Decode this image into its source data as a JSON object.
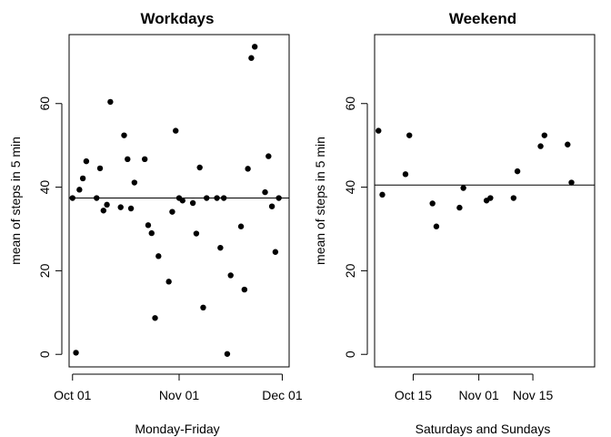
{
  "chart_data": [
    {
      "type": "scatter",
      "title": "Workdays",
      "xlabel": "Monday-Friday",
      "ylabel": "mean of steps in 5 min",
      "x_tick_labels": [
        "Oct 01",
        "Nov 01",
        "Dec 01"
      ],
      "x_tick_dates": [
        "2012-10-01",
        "2012-11-01",
        "2012-12-01"
      ],
      "y_ticks": [
        0,
        20,
        40,
        60
      ],
      "xlim": [
        "2012-09-30",
        "2012-12-03"
      ],
      "ylim": [
        -3,
        76.5
      ],
      "mean_line": 37.4,
      "colors": {
        "points": "#000000",
        "line": "#000000"
      },
      "points": [
        {
          "x": "2012-10-01",
          "y": 37.4
        },
        {
          "x": "2012-10-02",
          "y": 0.4
        },
        {
          "x": "2012-10-03",
          "y": 39.4
        },
        {
          "x": "2012-10-04",
          "y": 42.1
        },
        {
          "x": "2012-10-05",
          "y": 46.2
        },
        {
          "x": "2012-10-08",
          "y": 37.4
        },
        {
          "x": "2012-10-09",
          "y": 44.5
        },
        {
          "x": "2012-10-10",
          "y": 34.4
        },
        {
          "x": "2012-10-11",
          "y": 35.8
        },
        {
          "x": "2012-10-12",
          "y": 60.4
        },
        {
          "x": "2012-10-15",
          "y": 35.2
        },
        {
          "x": "2012-10-16",
          "y": 52.4
        },
        {
          "x": "2012-10-17",
          "y": 46.7
        },
        {
          "x": "2012-10-18",
          "y": 34.9
        },
        {
          "x": "2012-10-19",
          "y": 41.1
        },
        {
          "x": "2012-10-22",
          "y": 46.7
        },
        {
          "x": "2012-10-23",
          "y": 30.9
        },
        {
          "x": "2012-10-24",
          "y": 29.0
        },
        {
          "x": "2012-10-25",
          "y": 8.7
        },
        {
          "x": "2012-10-26",
          "y": 23.5
        },
        {
          "x": "2012-10-29",
          "y": 17.4
        },
        {
          "x": "2012-10-30",
          "y": 34.1
        },
        {
          "x": "2012-10-31",
          "y": 53.5
        },
        {
          "x": "2012-11-01",
          "y": 37.4
        },
        {
          "x": "2012-11-02",
          "y": 36.8
        },
        {
          "x": "2012-11-05",
          "y": 36.2
        },
        {
          "x": "2012-11-06",
          "y": 28.9
        },
        {
          "x": "2012-11-07",
          "y": 44.7
        },
        {
          "x": "2012-11-08",
          "y": 11.2
        },
        {
          "x": "2012-11-09",
          "y": 37.4
        },
        {
          "x": "2012-11-12",
          "y": 37.4
        },
        {
          "x": "2012-11-13",
          "y": 25.5
        },
        {
          "x": "2012-11-14",
          "y": 37.4
        },
        {
          "x": "2012-11-15",
          "y": 0.1
        },
        {
          "x": "2012-11-16",
          "y": 18.9
        },
        {
          "x": "2012-11-19",
          "y": 30.6
        },
        {
          "x": "2012-11-20",
          "y": 15.5
        },
        {
          "x": "2012-11-21",
          "y": 44.4
        },
        {
          "x": "2012-11-22",
          "y": 70.9
        },
        {
          "x": "2012-11-23",
          "y": 73.6
        },
        {
          "x": "2012-11-26",
          "y": 38.8
        },
        {
          "x": "2012-11-27",
          "y": 47.4
        },
        {
          "x": "2012-11-28",
          "y": 35.4
        },
        {
          "x": "2012-11-29",
          "y": 24.5
        },
        {
          "x": "2012-11-30",
          "y": 37.4
        }
      ]
    },
    {
      "type": "scatter",
      "title": "Weekend",
      "xlabel": "Saturdays and Sundays",
      "ylabel": "mean of steps in 5 min",
      "x_tick_labels": [
        "Oct 15",
        "Nov 01",
        "Nov 15"
      ],
      "x_tick_dates": [
        "2012-10-15",
        "2012-11-01",
        "2012-11-15"
      ],
      "y_ticks": [
        0,
        20,
        40,
        60
      ],
      "xlim": [
        "2012-10-05",
        "2012-12-01"
      ],
      "ylim": [
        -3,
        76.5
      ],
      "mean_line": 40.5,
      "colors": {
        "points": "#000000",
        "line": "#000000"
      },
      "points": [
        {
          "x": "2012-10-06",
          "y": 53.5
        },
        {
          "x": "2012-10-07",
          "y": 38.2
        },
        {
          "x": "2012-10-13",
          "y": 43.1
        },
        {
          "x": "2012-10-14",
          "y": 52.4
        },
        {
          "x": "2012-10-20",
          "y": 36.1
        },
        {
          "x": "2012-10-21",
          "y": 30.6
        },
        {
          "x": "2012-10-27",
          "y": 35.1
        },
        {
          "x": "2012-10-28",
          "y": 39.8
        },
        {
          "x": "2012-11-03",
          "y": 36.8
        },
        {
          "x": "2012-11-04",
          "y": 37.4
        },
        {
          "x": "2012-11-10",
          "y": 37.4
        },
        {
          "x": "2012-11-11",
          "y": 43.8
        },
        {
          "x": "2012-11-17",
          "y": 49.8
        },
        {
          "x": "2012-11-18",
          "y": 52.4
        },
        {
          "x": "2012-11-24",
          "y": 50.2
        },
        {
          "x": "2012-11-25",
          "y": 41.1
        }
      ]
    }
  ]
}
